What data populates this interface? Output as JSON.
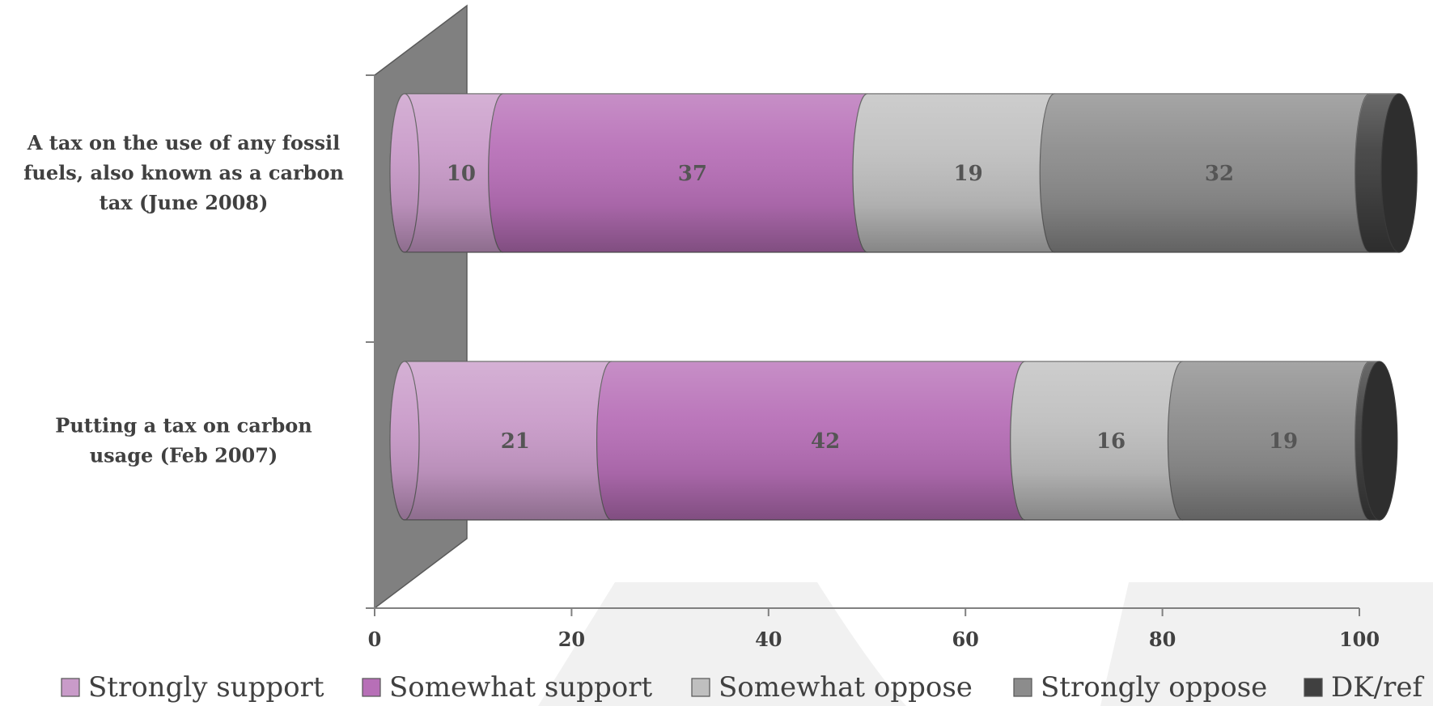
{
  "chart_data": {
    "type": "bar",
    "orientation": "horizontal",
    "stacked": true,
    "categories": [
      "A tax on the use of any fossil fuels, also known as a carbon tax (June 2008)",
      "Putting a tax on carbon usage (Feb 2007)"
    ],
    "category_lines": [
      [
        "A tax on the use of any fossil",
        "fuels, also known as a carbon",
        "tax (June 2008)"
      ],
      [
        "Putting a tax on carbon",
        "usage (Feb 2007)"
      ]
    ],
    "series": [
      {
        "name": "Strongly support",
        "values": [
          10,
          21
        ],
        "color": "#c99bc9"
      },
      {
        "name": "Somewhat support",
        "values": [
          37,
          42
        ],
        "color": "#b76fb7"
      },
      {
        "name": "Somewhat oppose",
        "values": [
          19,
          16
        ],
        "color": "#bfbfbf"
      },
      {
        "name": "Strongly oppose",
        "values": [
          32,
          19
        ],
        "color": "#8c8c8c"
      },
      {
        "name": "DK/ref",
        "values": [
          3,
          1
        ],
        "color": "#404040"
      }
    ],
    "xlim": [
      0,
      100
    ],
    "xticks": [
      0,
      20,
      40,
      60,
      80,
      100
    ],
    "legend_position": "bottom",
    "title": "",
    "xlabel": "",
    "ylabel": ""
  }
}
